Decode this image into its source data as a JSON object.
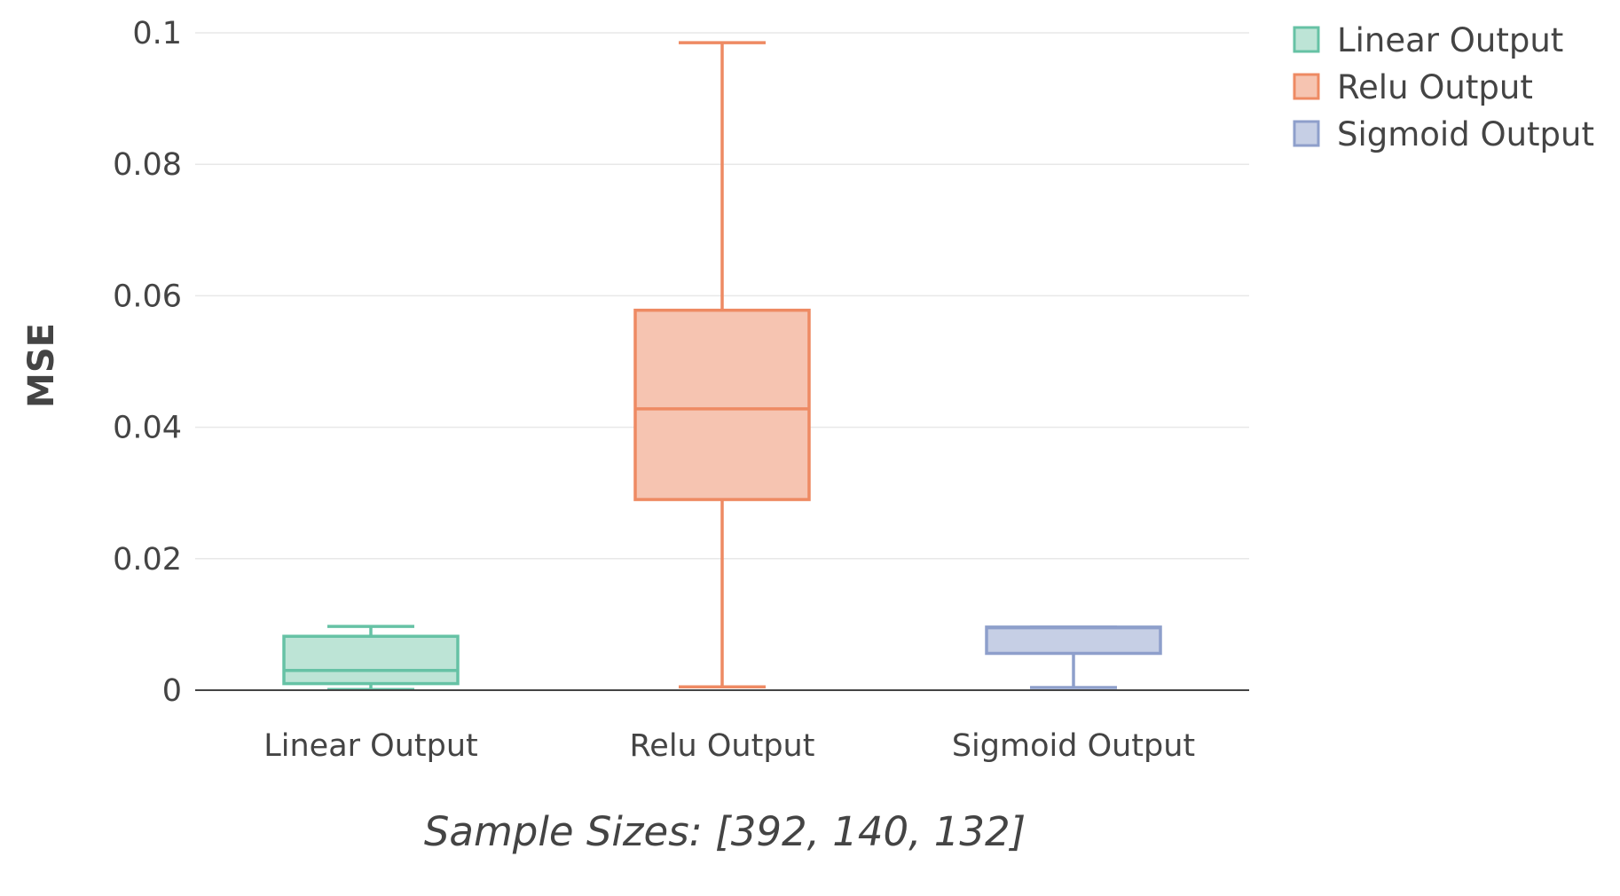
{
  "chart_data": {
    "type": "box",
    "categories": [
      "Linear Output",
      "Relu Output",
      "Sigmoid Output"
    ],
    "series": [
      {
        "name": "Linear Output",
        "color": "#66c2a5",
        "fill": "#bde4d6",
        "min": 0.0001,
        "q1": 0.001,
        "median": 0.003,
        "q3": 0.0082,
        "max": 0.0097
      },
      {
        "name": "Relu Output",
        "color": "#ee8a63",
        "fill": "#f6c4b1",
        "min": 0.0005,
        "q1": 0.029,
        "median": 0.0428,
        "q3": 0.0578,
        "max": 0.0985
      },
      {
        "name": "Sigmoid Output",
        "color": "#8e9fcb",
        "fill": "#c6cfe5",
        "min": 0.0004,
        "q1": 0.0056,
        "median": 0.0095,
        "q3": 0.0096,
        "max": 0.0096
      }
    ],
    "yticks": [
      0,
      0.02,
      0.04,
      0.06,
      0.08,
      0.1
    ],
    "ytick_labels": [
      "0",
      "0.02",
      "0.04",
      "0.06",
      "0.08",
      "0.1"
    ],
    "ylim": [
      0,
      0.1
    ],
    "ylabel": "MSE",
    "xlabel": "Sample Sizes: [392, 140, 132]",
    "grid": true,
    "legend": "top-right"
  }
}
